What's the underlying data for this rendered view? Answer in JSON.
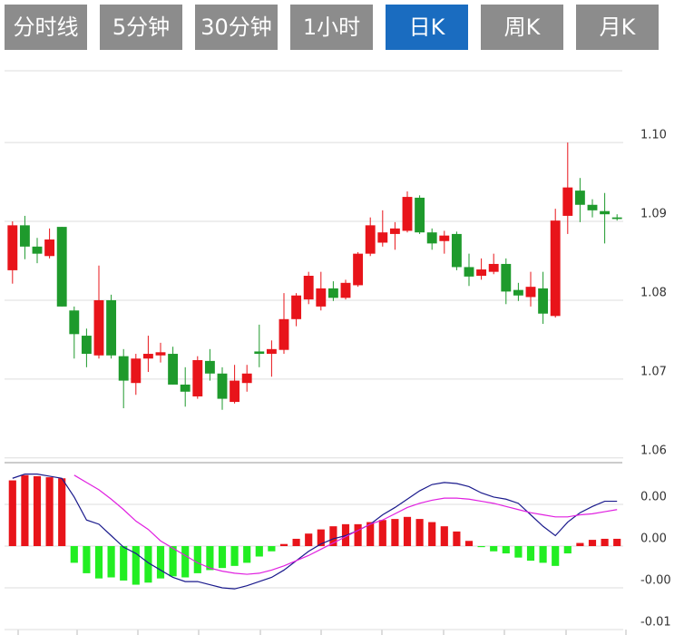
{
  "tabs": {
    "items": [
      "分时线",
      "5分钟",
      "30分钟",
      "1小时",
      "日K",
      "周K",
      "月K"
    ],
    "active": 4
  },
  "chart_data": [
    {
      "type": "candlestick",
      "up_color": "#e8141a",
      "down_color": "#1e9a2c",
      "open": [
        1.0838,
        1.0895,
        1.0868,
        1.0856,
        1.0893,
        1.0787,
        1.0755,
        1.073,
        1.08,
        1.0729,
        1.0695,
        1.0726,
        1.073,
        1.0732,
        1.0693,
        1.0678,
        1.0723,
        1.0707,
        1.0671,
        1.0695,
        1.0735,
        1.0732,
        1.0737,
        1.0776,
        1.0801,
        1.0792,
        1.0815,
        1.0803,
        1.0819,
        1.0859,
        1.0873,
        1.0884,
        1.0888,
        1.093,
        1.0886,
        1.0875,
        1.0884,
        1.0842,
        1.0831,
        1.0836,
        1.0846,
        1.0813,
        1.0804,
        1.0815,
        1.078,
        1.0907,
        1.0939,
        1.0921,
        1.0913,
        1.0905
      ],
      "high": [
        1.09,
        1.0907,
        1.0879,
        1.0891,
        1.0893,
        1.0792,
        1.0764,
        1.0844,
        1.0807,
        1.0738,
        1.0732,
        1.0755,
        1.0746,
        1.0741,
        1.0715,
        1.0729,
        1.0738,
        1.0715,
        1.0718,
        1.0718,
        1.0769,
        1.0749,
        1.0809,
        1.0809,
        1.0836,
        1.0836,
        1.0824,
        1.0826,
        1.0861,
        1.0905,
        1.0914,
        1.0899,
        1.0938,
        1.0933,
        1.0891,
        1.0888,
        1.0887,
        1.0859,
        1.0853,
        1.0859,
        1.0853,
        1.0822,
        1.0836,
        1.0836,
        1.0916,
        1.1,
        1.0955,
        1.0928,
        1.0936,
        1.0909
      ],
      "low": [
        1.0821,
        1.0852,
        1.0847,
        1.0853,
        1.0792,
        1.0726,
        1.0715,
        1.0726,
        1.0726,
        1.0663,
        1.068,
        1.0709,
        1.0721,
        1.0693,
        1.0665,
        1.0675,
        1.0698,
        1.0661,
        1.0669,
        1.0684,
        1.0715,
        1.0703,
        1.0732,
        1.0767,
        1.0795,
        1.0787,
        1.0799,
        1.0801,
        1.0817,
        1.0856,
        1.0868,
        1.0864,
        1.0886,
        1.0884,
        1.0864,
        1.0859,
        1.0838,
        1.0818,
        1.0826,
        1.0833,
        1.0795,
        1.0799,
        1.0792,
        1.077,
        1.0778,
        1.0884,
        1.0899,
        1.0905,
        1.0872,
        1.0901
      ],
      "close": [
        1.0895,
        1.0868,
        1.0859,
        1.0877,
        1.0792,
        1.0757,
        1.0732,
        1.08,
        1.073,
        1.0698,
        1.0726,
        1.0732,
        1.0734,
        1.0693,
        1.0684,
        1.0724,
        1.0707,
        1.0675,
        1.0698,
        1.0707,
        1.0732,
        1.0738,
        1.0776,
        1.0806,
        1.0831,
        1.0815,
        1.0803,
        1.0822,
        1.0859,
        1.0895,
        1.0886,
        1.0891,
        1.0931,
        1.0886,
        1.0872,
        1.0882,
        1.0842,
        1.083,
        1.0839,
        1.0846,
        1.0811,
        1.0806,
        1.0817,
        1.0783,
        1.0901,
        1.0943,
        1.0921,
        1.0914,
        1.0909,
        1.0903
      ],
      "ylim": [
        1.0594,
        1.1091
      ],
      "yticks": [
        1.06,
        1.07,
        1.08,
        1.09,
        {
          "value": 1.1,
          "label": "1.10"
        }
      ],
      "grid": true
    },
    {
      "type": "macd",
      "up_color": "#e8141a",
      "down_color": "#22ee22",
      "values": [
        0.0063,
        0.0068,
        0.0067,
        0.0066,
        0.0065,
        -0.0016,
        -0.0026,
        -0.0031,
        -0.003,
        -0.0033,
        -0.0037,
        -0.0035,
        -0.0031,
        -0.0029,
        -0.003,
        -0.0026,
        -0.0023,
        -0.0021,
        -0.0019,
        -0.0016,
        -0.001,
        -0.0005,
        0.0002,
        0.0007,
        0.0012,
        0.0016,
        0.0019,
        0.0021,
        0.0021,
        0.0023,
        0.0025,
        0.0026,
        0.0028,
        0.0026,
        0.0023,
        0.0019,
        0.0014,
        0.0005,
        -0.0001,
        -0.0005,
        -0.0007,
        -0.0011,
        -0.0014,
        -0.0016,
        -0.0019,
        -0.0007,
        0.0003,
        0.0006,
        0.0007,
        0.0007
      ],
      "series": [
        {
          "color": "#1a1a8c",
          "values": [
            0.0065,
            0.0069,
            0.0069,
            0.0067,
            0.0065,
            0.0047,
            0.0025,
            0.0021,
            0.001,
            -0.0001,
            -0.0007,
            -0.0016,
            -0.0023,
            -0.003,
            -0.0034,
            -0.0034,
            -0.0037,
            -0.004,
            -0.0041,
            -0.0038,
            -0.0034,
            -0.003,
            -0.0023,
            -0.0014,
            -0.0005,
            0.0002,
            0.0007,
            0.001,
            0.0015,
            0.0021,
            0.003,
            0.0037,
            0.0045,
            0.0053,
            0.0059,
            0.0061,
            0.006,
            0.0057,
            0.0051,
            0.0047,
            0.0045,
            0.0041,
            0.003,
            0.0019,
            0.001,
            0.0023,
            0.0032,
            0.0038,
            0.0043,
            0.0043
          ]
        },
        {
          "color": "#e020e0",
          "values": [
            null,
            null,
            null,
            null,
            null,
            0.0068,
            0.0061,
            0.0054,
            0.0045,
            0.0035,
            0.0024,
            0.0016,
            0.0005,
            -0.0002,
            -0.0009,
            -0.0016,
            -0.0021,
            -0.0024,
            -0.0026,
            -0.0027,
            -0.0026,
            -0.0023,
            -0.0019,
            -0.0014,
            -0.0009,
            -0.0003,
            0.0003,
            0.0009,
            0.0015,
            0.0021,
            0.0025,
            0.0031,
            0.0037,
            0.0041,
            0.0044,
            0.0046,
            0.0046,
            0.0045,
            0.0043,
            0.0041,
            0.0038,
            0.0035,
            0.0032,
            0.003,
            0.0028,
            0.0028,
            0.003,
            0.0031,
            0.0033,
            0.0035
          ]
        }
      ],
      "ylim": [
        -0.008,
        0.008
      ],
      "yticks": [
        {
          "value": 0.004,
          "label": "0.00"
        },
        {
          "value": 0,
          "label": "0.00"
        },
        {
          "value": -0.004,
          "label": "-0.00"
        },
        {
          "value": -0.008,
          "label": "-0.01"
        }
      ],
      "grid": true
    }
  ]
}
